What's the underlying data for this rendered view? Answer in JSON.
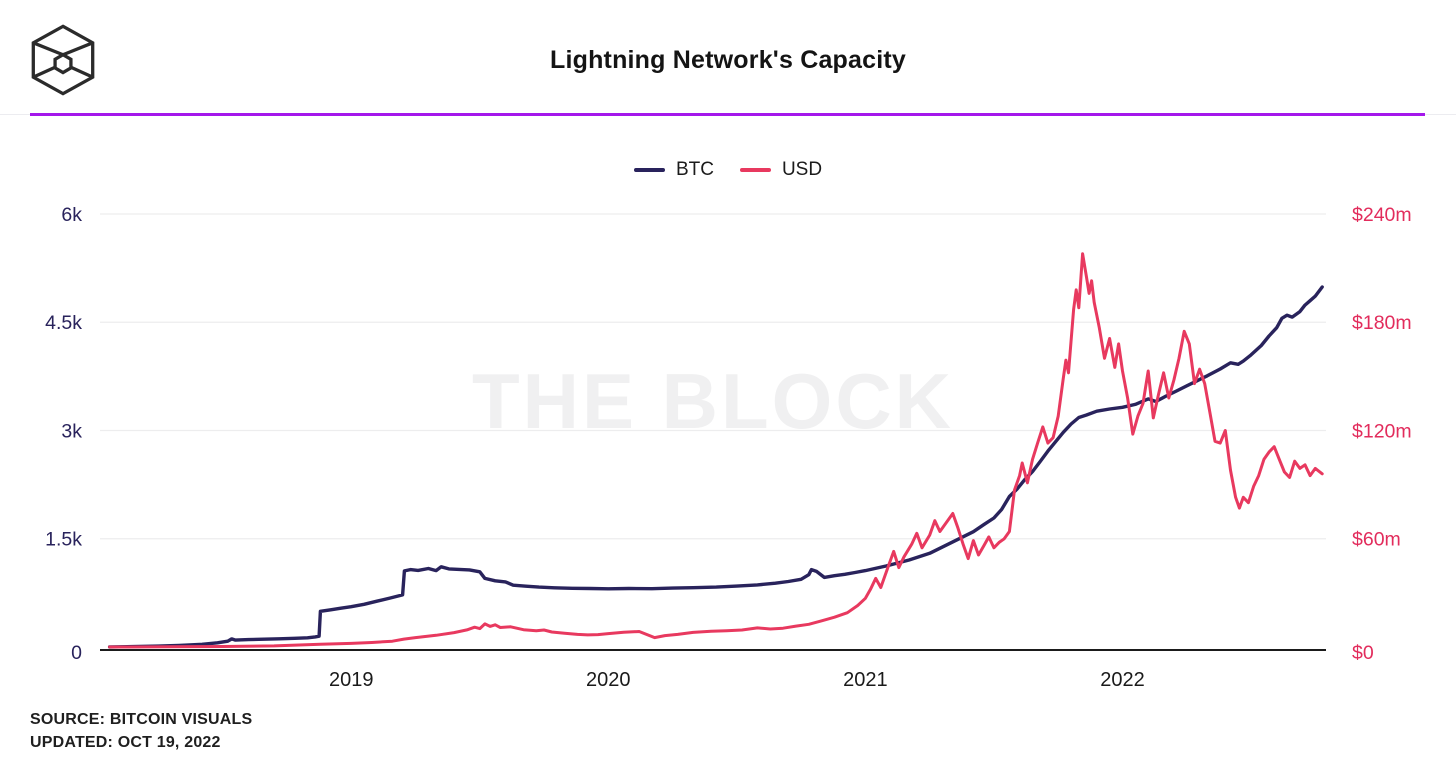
{
  "header": {
    "title": "Lightning Network's Capacity",
    "logo": "the-block-cube-logo"
  },
  "divider_color": "#A417EB",
  "legend": [
    {
      "label": "BTC",
      "color": "#29235C"
    },
    {
      "label": "USD",
      "color": "#E8395F"
    }
  ],
  "watermark": "THE BLOCK",
  "footer": {
    "source": "SOURCE: BITCOIN VISUALS",
    "updated": "UPDATED: OCT 19, 2022"
  },
  "chart_data": {
    "type": "line",
    "title": "Lightning Network's Capacity",
    "grid": "horizontal",
    "legend_position": "top-center",
    "x_domain": [
      2018.05,
      2022.78
    ],
    "x_ticks": [
      {
        "label": "2019",
        "x": 2019
      },
      {
        "label": "2020",
        "x": 2020
      },
      {
        "label": "2021",
        "x": 2021
      },
      {
        "label": "2022",
        "x": 2022
      }
    ],
    "left_axis": {
      "label": "BTC",
      "lim": [
        0,
        6000
      ],
      "color": "#29235C",
      "ticks": [
        {
          "label": "6k",
          "value": 6000
        },
        {
          "label": "4.5k",
          "value": 4500
        },
        {
          "label": "3k",
          "value": 3000
        },
        {
          "label": "1.5k",
          "value": 1500
        },
        {
          "label": "0",
          "value": 0
        }
      ]
    },
    "right_axis": {
      "label": "USD",
      "lim": [
        0,
        240
      ],
      "color": "#E22C5C",
      "ticks": [
        {
          "label": "$240m",
          "value": 240
        },
        {
          "label": "$180m",
          "value": 180
        },
        {
          "label": "$120m",
          "value": 120
        },
        {
          "label": "$60m",
          "value": 60
        },
        {
          "label": "$0",
          "value": 0
        }
      ]
    },
    "series": [
      {
        "name": "BTC",
        "axis": "left",
        "color": "#29235C",
        "points": [
          [
            2018.06,
            2
          ],
          [
            2018.15,
            6
          ],
          [
            2018.25,
            12
          ],
          [
            2018.33,
            22
          ],
          [
            2018.42,
            38
          ],
          [
            2018.48,
            58
          ],
          [
            2018.52,
            80
          ],
          [
            2018.535,
            112
          ],
          [
            2018.55,
            96
          ],
          [
            2018.6,
            102
          ],
          [
            2018.66,
            108
          ],
          [
            2018.72,
            114
          ],
          [
            2018.78,
            120
          ],
          [
            2018.83,
            128
          ],
          [
            2018.86,
            140
          ],
          [
            2018.875,
            150
          ],
          [
            2018.88,
            495
          ],
          [
            2018.92,
            515
          ],
          [
            2018.96,
            538
          ],
          [
            2019.0,
            558
          ],
          [
            2019.05,
            592
          ],
          [
            2019.1,
            635
          ],
          [
            2019.15,
            678
          ],
          [
            2019.2,
            722
          ],
          [
            2019.207,
            1055
          ],
          [
            2019.23,
            1072
          ],
          [
            2019.26,
            1062
          ],
          [
            2019.3,
            1088
          ],
          [
            2019.33,
            1058
          ],
          [
            2019.35,
            1112
          ],
          [
            2019.38,
            1082
          ],
          [
            2019.42,
            1075
          ],
          [
            2019.46,
            1068
          ],
          [
            2019.5,
            1042
          ],
          [
            2019.52,
            950
          ],
          [
            2019.56,
            918
          ],
          [
            2019.6,
            902
          ],
          [
            2019.63,
            856
          ],
          [
            2019.68,
            842
          ],
          [
            2019.73,
            830
          ],
          [
            2019.79,
            820
          ],
          [
            2019.86,
            814
          ],
          [
            2019.93,
            810
          ],
          [
            2020.0,
            806
          ],
          [
            2020.08,
            810
          ],
          [
            2020.17,
            808
          ],
          [
            2020.25,
            816
          ],
          [
            2020.33,
            822
          ],
          [
            2020.42,
            830
          ],
          [
            2020.5,
            844
          ],
          [
            2020.58,
            860
          ],
          [
            2020.65,
            884
          ],
          [
            2020.7,
            908
          ],
          [
            2020.75,
            938
          ],
          [
            2020.78,
            1002
          ],
          [
            2020.79,
            1072
          ],
          [
            2020.81,
            1048
          ],
          [
            2020.84,
            965
          ],
          [
            2020.88,
            988
          ],
          [
            2020.92,
            1008
          ],
          [
            2020.96,
            1032
          ],
          [
            2021.0,
            1058
          ],
          [
            2021.08,
            1122
          ],
          [
            2021.17,
            1205
          ],
          [
            2021.25,
            1298
          ],
          [
            2021.33,
            1438
          ],
          [
            2021.42,
            1598
          ],
          [
            2021.46,
            1695
          ],
          [
            2021.5,
            1788
          ],
          [
            2021.53,
            1905
          ],
          [
            2021.56,
            2085
          ],
          [
            2021.59,
            2190
          ],
          [
            2021.62,
            2320
          ],
          [
            2021.65,
            2430
          ],
          [
            2021.68,
            2570
          ],
          [
            2021.71,
            2715
          ],
          [
            2021.74,
            2845
          ],
          [
            2021.77,
            2975
          ],
          [
            2021.8,
            3090
          ],
          [
            2021.83,
            3180
          ],
          [
            2021.86,
            3215
          ],
          [
            2021.9,
            3268
          ],
          [
            2021.95,
            3298
          ],
          [
            2022.0,
            3322
          ],
          [
            2022.05,
            3362
          ],
          [
            2022.1,
            3438
          ],
          [
            2022.13,
            3402
          ],
          [
            2022.17,
            3478
          ],
          [
            2022.21,
            3548
          ],
          [
            2022.25,
            3618
          ],
          [
            2022.29,
            3688
          ],
          [
            2022.33,
            3758
          ],
          [
            2022.38,
            3852
          ],
          [
            2022.42,
            3938
          ],
          [
            2022.45,
            3918
          ],
          [
            2022.47,
            3962
          ],
          [
            2022.5,
            4048
          ],
          [
            2022.54,
            4178
          ],
          [
            2022.57,
            4310
          ],
          [
            2022.6,
            4425
          ],
          [
            2022.62,
            4555
          ],
          [
            2022.64,
            4598
          ],
          [
            2022.66,
            4572
          ],
          [
            2022.69,
            4648
          ],
          [
            2022.71,
            4738
          ],
          [
            2022.73,
            4798
          ],
          [
            2022.75,
            4862
          ],
          [
            2022.777,
            4988
          ]
        ]
      },
      {
        "name": "USD",
        "axis": "right",
        "color": "#E8395F",
        "points": [
          [
            2018.06,
            0.02
          ],
          [
            2018.3,
            0.1
          ],
          [
            2018.5,
            0.3
          ],
          [
            2018.7,
            0.6
          ],
          [
            2018.88,
            1.5
          ],
          [
            2019.0,
            2.0
          ],
          [
            2019.08,
            2.5
          ],
          [
            2019.16,
            3.2
          ],
          [
            2019.205,
            4.4
          ],
          [
            2019.25,
            5.2
          ],
          [
            2019.33,
            6.5
          ],
          [
            2019.4,
            8.0
          ],
          [
            2019.45,
            9.5
          ],
          [
            2019.48,
            11.0
          ],
          [
            2019.5,
            10.2
          ],
          [
            2019.52,
            12.8
          ],
          [
            2019.54,
            11.4
          ],
          [
            2019.56,
            12.3
          ],
          [
            2019.58,
            10.8
          ],
          [
            2019.62,
            11.2
          ],
          [
            2019.67,
            9.6
          ],
          [
            2019.72,
            9.0
          ],
          [
            2019.75,
            9.4
          ],
          [
            2019.78,
            8.3
          ],
          [
            2019.83,
            7.6
          ],
          [
            2019.88,
            7.0
          ],
          [
            2019.92,
            6.7
          ],
          [
            2019.96,
            6.9
          ],
          [
            2020.0,
            7.4
          ],
          [
            2020.06,
            8.2
          ],
          [
            2020.12,
            8.6
          ],
          [
            2020.18,
            5.2
          ],
          [
            2020.22,
            6.3
          ],
          [
            2020.27,
            7.0
          ],
          [
            2020.33,
            8.1
          ],
          [
            2020.4,
            8.7
          ],
          [
            2020.46,
            9.0
          ],
          [
            2020.52,
            9.4
          ],
          [
            2020.58,
            10.6
          ],
          [
            2020.63,
            10.0
          ],
          [
            2020.68,
            10.4
          ],
          [
            2020.73,
            11.6
          ],
          [
            2020.78,
            12.6
          ],
          [
            2020.83,
            14.5
          ],
          [
            2020.88,
            16.5
          ],
          [
            2020.93,
            19.0
          ],
          [
            2020.97,
            23.0
          ],
          [
            2021.0,
            27
          ],
          [
            2021.02,
            32
          ],
          [
            2021.04,
            38
          ],
          [
            2021.06,
            33
          ],
          [
            2021.09,
            45
          ],
          [
            2021.11,
            53
          ],
          [
            2021.13,
            44
          ],
          [
            2021.15,
            50
          ],
          [
            2021.18,
            57
          ],
          [
            2021.2,
            63
          ],
          [
            2021.22,
            55
          ],
          [
            2021.25,
            62
          ],
          [
            2021.27,
            70
          ],
          [
            2021.29,
            64
          ],
          [
            2021.31,
            68
          ],
          [
            2021.34,
            74
          ],
          [
            2021.36,
            66
          ],
          [
            2021.38,
            57
          ],
          [
            2021.4,
            49
          ],
          [
            2021.42,
            59
          ],
          [
            2021.44,
            51
          ],
          [
            2021.46,
            56
          ],
          [
            2021.48,
            61
          ],
          [
            2021.5,
            55
          ],
          [
            2021.52,
            58
          ],
          [
            2021.54,
            60
          ],
          [
            2021.56,
            64
          ],
          [
            2021.58,
            87
          ],
          [
            2021.6,
            95
          ],
          [
            2021.61,
            102
          ],
          [
            2021.63,
            91
          ],
          [
            2021.65,
            104
          ],
          [
            2021.67,
            113
          ],
          [
            2021.69,
            122
          ],
          [
            2021.71,
            113
          ],
          [
            2021.73,
            116
          ],
          [
            2021.75,
            128
          ],
          [
            2021.77,
            149
          ],
          [
            2021.78,
            159
          ],
          [
            2021.79,
            152
          ],
          [
            2021.81,
            187
          ],
          [
            2021.82,
            198
          ],
          [
            2021.83,
            188
          ],
          [
            2021.845,
            218
          ],
          [
            2021.86,
            205
          ],
          [
            2021.87,
            196
          ],
          [
            2021.88,
            203
          ],
          [
            2021.89,
            191
          ],
          [
            2021.91,
            177
          ],
          [
            2021.93,
            160
          ],
          [
            2021.95,
            171
          ],
          [
            2021.97,
            155
          ],
          [
            2021.985,
            168
          ],
          [
            2022.0,
            153
          ],
          [
            2022.02,
            138
          ],
          [
            2022.04,
            118
          ],
          [
            2022.06,
            128
          ],
          [
            2022.08,
            135
          ],
          [
            2022.1,
            153
          ],
          [
            2022.12,
            127
          ],
          [
            2022.14,
            140
          ],
          [
            2022.16,
            152
          ],
          [
            2022.18,
            138
          ],
          [
            2022.2,
            148
          ],
          [
            2022.22,
            160
          ],
          [
            2022.24,
            175
          ],
          [
            2022.26,
            168
          ],
          [
            2022.28,
            146
          ],
          [
            2022.3,
            154
          ],
          [
            2022.32,
            146
          ],
          [
            2022.34,
            130
          ],
          [
            2022.36,
            114
          ],
          [
            2022.38,
            113
          ],
          [
            2022.4,
            120
          ],
          [
            2022.42,
            98
          ],
          [
            2022.44,
            83
          ],
          [
            2022.455,
            77
          ],
          [
            2022.47,
            83
          ],
          [
            2022.49,
            80
          ],
          [
            2022.51,
            89
          ],
          [
            2022.53,
            95
          ],
          [
            2022.55,
            104
          ],
          [
            2022.57,
            108
          ],
          [
            2022.59,
            111
          ],
          [
            2022.61,
            104
          ],
          [
            2022.63,
            97
          ],
          [
            2022.65,
            94
          ],
          [
            2022.67,
            103
          ],
          [
            2022.69,
            99
          ],
          [
            2022.71,
            101
          ],
          [
            2022.73,
            95
          ],
          [
            2022.75,
            99
          ],
          [
            2022.777,
            96
          ]
        ]
      }
    ]
  }
}
